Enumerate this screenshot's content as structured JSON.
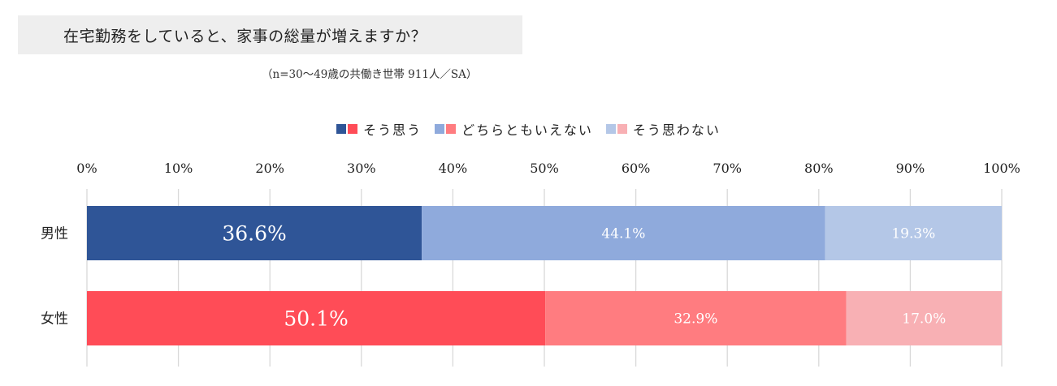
{
  "title": "在宅勤務をしていると、家事の総量が増えますか？",
  "subtitle": "（n=30〜49歳の共働き世帯 911人／SA）",
  "chart_data": {
    "type": "bar",
    "orientation": "horizontal",
    "stacked": "percent",
    "categories": [
      "男性",
      "女性"
    ],
    "series": [
      {
        "name": "そう思う",
        "values": [
          36.6,
          50.1
        ],
        "value_labels": [
          "36.6%",
          "50.1%"
        ],
        "colors": [
          "#2f5597",
          "#ff4c57"
        ]
      },
      {
        "name": "どちらともいえない",
        "values": [
          44.1,
          32.9
        ],
        "value_labels": [
          "44.1%",
          "32.9%"
        ],
        "colors": [
          "#8faadc",
          "#ff7c80"
        ]
      },
      {
        "name": "そう思わない",
        "values": [
          19.3,
          17.0
        ],
        "value_labels": [
          "19.3%",
          "17.0%"
        ],
        "colors": [
          "#b4c7e7",
          "#f8b0b4"
        ]
      }
    ],
    "x_ticks": [
      "0%",
      "10%",
      "20%",
      "30%",
      "40%",
      "50%",
      "60%",
      "70%",
      "80%",
      "90%",
      "100%"
    ],
    "xlim": [
      0,
      100
    ],
    "grid": true,
    "legend_position": "top-center"
  }
}
